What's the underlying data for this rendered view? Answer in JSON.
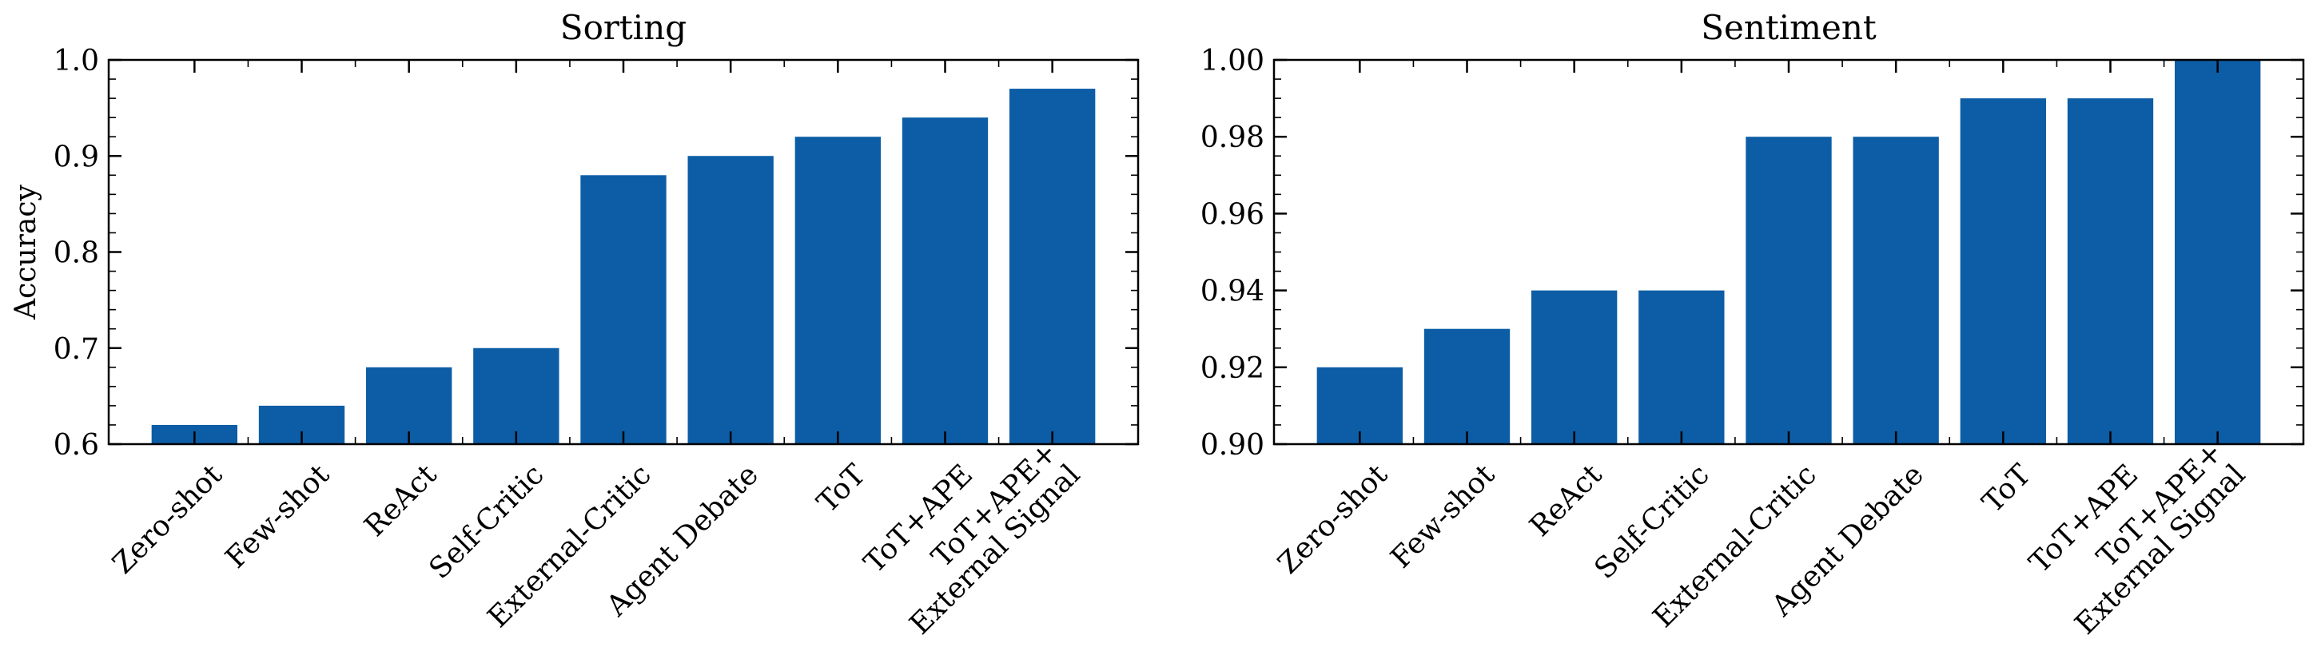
{
  "chart_data": [
    {
      "type": "bar",
      "title": "Sorting",
      "ylabel": "Accuracy",
      "xlabel": "",
      "categories": [
        "Zero-shot",
        "Few-shot",
        "ReAct",
        "Self-Critic",
        "External-Critic",
        "Agent Debate",
        "ToT",
        "ToT+APE",
        "ToT+APE+\nExternal Signal"
      ],
      "values": [
        0.62,
        0.64,
        0.68,
        0.7,
        0.88,
        0.9,
        0.92,
        0.94,
        0.97
      ],
      "ylim": [
        0.6,
        1.0
      ],
      "yticks": [
        0.6,
        0.7,
        0.8,
        0.9,
        1.0
      ],
      "ytick_labels": [
        "0.6",
        "0.7",
        "0.8",
        "0.9",
        "1.0"
      ],
      "minor_step": 0.02,
      "bar_color": "#0C5DA5",
      "grid": false
    },
    {
      "type": "bar",
      "title": "Sentiment",
      "ylabel": "",
      "xlabel": "",
      "categories": [
        "Zero-shot",
        "Few-shot",
        "ReAct",
        "Self-Critic",
        "External-Critic",
        "Agent Debate",
        "ToT",
        "ToT+APE",
        "ToT+APE+\nExternal Signal"
      ],
      "values": [
        0.92,
        0.93,
        0.94,
        0.94,
        0.98,
        0.98,
        0.99,
        0.99,
        1.0
      ],
      "ylim": [
        0.9,
        1.0
      ],
      "yticks": [
        0.9,
        0.92,
        0.94,
        0.96,
        0.98,
        1.0
      ],
      "ytick_labels": [
        "0.90",
        "0.92",
        "0.94",
        "0.96",
        "0.98",
        "1.00"
      ],
      "minor_step": 0.005,
      "bar_color": "#0C5DA5",
      "grid": false
    }
  ]
}
